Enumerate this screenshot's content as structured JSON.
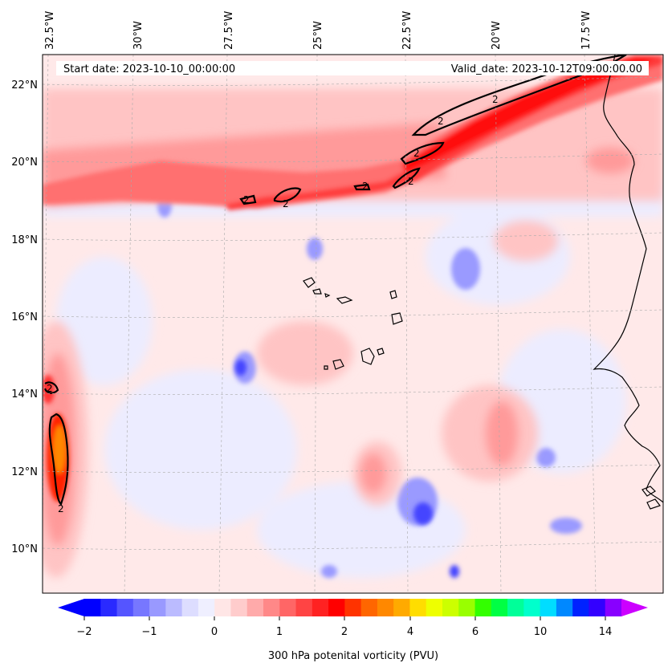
{
  "header": {
    "start_date": "Start date: 2023-10-10_00:00:00",
    "valid_date": "Valid_date: 2023-10-12T09:00:00.00"
  },
  "axes": {
    "lon_labels": [
      "32.5°W",
      "30°W",
      "27.5°W",
      "25°W",
      "22.5°W",
      "20°W",
      "17.5°W"
    ],
    "lat_labels": [
      "22°N",
      "20°N",
      "18°N",
      "16°N",
      "14°N",
      "12°N",
      "10°N"
    ]
  },
  "contour_labels": [
    "2",
    "2",
    "2",
    "2",
    "2",
    "2",
    "2",
    "2",
    "2"
  ],
  "colorbar": {
    "tick_labels": [
      "−2",
      "−1",
      "0",
      "1",
      "2",
      "4",
      "6",
      "10",
      "14"
    ],
    "label": "300 hPa potenital vorticity (PVU)",
    "colors": [
      "#0000ff",
      "#2a2aff",
      "#5555ff",
      "#7777ff",
      "#9999ff",
      "#bbbbff",
      "#ddddff",
      "#efefff",
      "#ffe6e6",
      "#ffcccc",
      "#ffaaaa",
      "#ff8888",
      "#ff6666",
      "#ff4444",
      "#ff2222",
      "#ff0000",
      "#ff3300",
      "#ff6600",
      "#ff8800",
      "#ffaa00",
      "#ffdd00",
      "#eeff00",
      "#ccff00",
      "#99ff00",
      "#33ff00",
      "#00ff44",
      "#00ff99",
      "#00ffcc",
      "#00ddff",
      "#0088ff",
      "#0022ff",
      "#3300ff",
      "#8800ff"
    ],
    "min_color": "#0000ff",
    "max_color": "#cc00ff"
  }
}
